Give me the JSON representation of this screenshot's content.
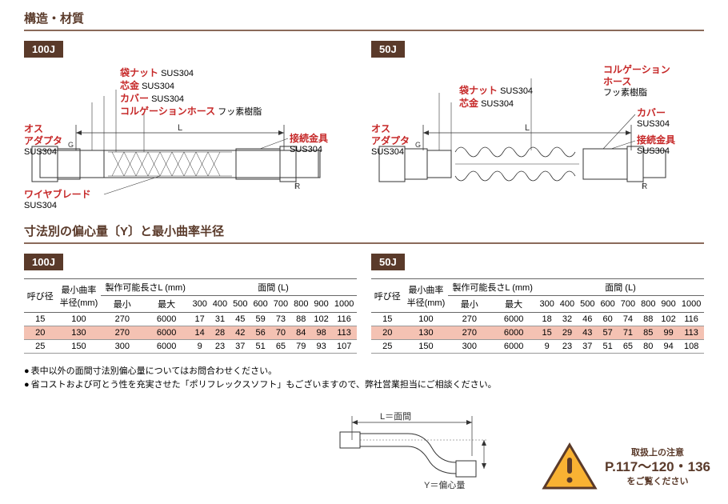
{
  "section1_title": "構造・材質",
  "section2_title": "寸法別の偏心量〔Y〕と最小曲率半径",
  "badge100": "100J",
  "badge50": "50J",
  "labels": {
    "male_adapter": "オス\nアダプタ",
    "male_adapter_mat": "SUS304",
    "nut": "袋ナット",
    "nut_mat": "SUS304",
    "core": "芯金",
    "core_mat": "SUS304",
    "cover": "カバー",
    "cover_mat": "SUS304",
    "corr": "コルゲーションホース",
    "corr_mat": "フッ素樹脂",
    "conn": "接続金具",
    "conn_mat": "SUS304",
    "braid": "ワイヤブレード",
    "braid_mat": "SUS304",
    "corr50": "コルゲーション\nホース",
    "corr50_mat": "フッ素樹脂"
  },
  "table_headers": {
    "dia": "呼び径",
    "radius": "最小曲率\n半径(mm)",
    "length": "製作可能長さL (mm)",
    "face": "面間 (L)",
    "min": "最小",
    "max": "最大"
  },
  "face_cols": [
    "300",
    "400",
    "500",
    "600",
    "700",
    "800",
    "900",
    "1000"
  ],
  "table100": [
    {
      "d": "15",
      "r": "100",
      "mn": "270",
      "mx": "6000",
      "v": [
        "17",
        "31",
        "45",
        "59",
        "73",
        "88",
        "102",
        "116"
      ]
    },
    {
      "d": "20",
      "r": "130",
      "mn": "270",
      "mx": "6000",
      "v": [
        "14",
        "28",
        "42",
        "56",
        "70",
        "84",
        "98",
        "113"
      ],
      "hl": true
    },
    {
      "d": "25",
      "r": "150",
      "mn": "300",
      "mx": "6000",
      "v": [
        "9",
        "23",
        "37",
        "51",
        "65",
        "79",
        "93",
        "107"
      ]
    }
  ],
  "table50": [
    {
      "d": "15",
      "r": "100",
      "mn": "270",
      "mx": "6000",
      "v": [
        "18",
        "32",
        "46",
        "60",
        "74",
        "88",
        "102",
        "116"
      ]
    },
    {
      "d": "20",
      "r": "130",
      "mn": "270",
      "mx": "6000",
      "v": [
        "15",
        "29",
        "43",
        "57",
        "71",
        "85",
        "99",
        "113"
      ],
      "hl": true
    },
    {
      "d": "25",
      "r": "150",
      "mn": "300",
      "mx": "6000",
      "v": [
        "9",
        "23",
        "37",
        "51",
        "65",
        "80",
        "94",
        "108"
      ]
    }
  ],
  "notes": [
    "表中以外の面間寸法別偏心量についてはお問合わせください。",
    "省コストおよび可とう性を充実させた「ポリフレックスソフト」もございますので、弊社営業担当にご相談ください。"
  ],
  "diag_small": {
    "L": "L＝面間",
    "Y": "Y＝偏心量"
  },
  "warning": {
    "title": "取扱上の注意",
    "pages": "P.117〜120・136",
    "sub": "をご覧ください"
  },
  "colors": {
    "brown": "#5a3a2a",
    "red": "#c62828",
    "hl": "#f4c2b3",
    "black": "#2a2a2a"
  }
}
